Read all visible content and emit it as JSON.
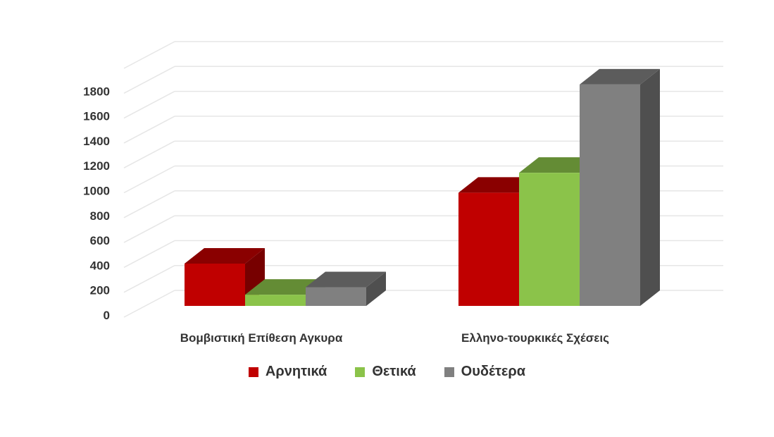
{
  "chart_data": {
    "type": "bar",
    "style": "3d-clustered-column",
    "categories": [
      "Βομβιστική Επίθεση Αγκυρα",
      "Ελληνο-τουρκικές Σχέσεις"
    ],
    "series": [
      {
        "name": "Αρνητικά",
        "values": [
          340,
          910
        ],
        "color": "#c00000"
      },
      {
        "name": "Θετικά",
        "values": [
          90,
          1070
        ],
        "color": "#8bc34a"
      },
      {
        "name": "Ουδέτερα",
        "values": [
          150,
          1780
        ],
        "color": "#808080"
      }
    ],
    "yticks": [
      0,
      200,
      400,
      600,
      800,
      1000,
      1200,
      1400,
      1600,
      1800
    ],
    "ylim": [
      0,
      2000
    ],
    "title": "",
    "xlabel": "",
    "ylabel": "",
    "grid": true,
    "legend_position": "bottom"
  }
}
